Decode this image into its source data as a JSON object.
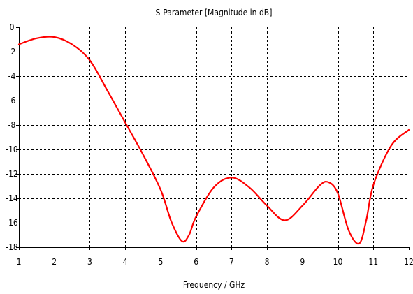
{
  "chart_data": {
    "type": "line",
    "title": "S-Parameter [Magnitude in dB]",
    "xlabel": "Frequency / GHz",
    "ylabel": "",
    "xlim": [
      1,
      12
    ],
    "ylim": [
      -18,
      0
    ],
    "xticks": [
      1,
      2,
      3,
      4,
      5,
      6,
      7,
      8,
      9,
      10,
      11,
      12
    ],
    "yticks": [
      0,
      -2,
      -4,
      -6,
      -8,
      -10,
      -12,
      -14,
      -16,
      -18
    ],
    "grid": true,
    "legend": "none",
    "series": [
      {
        "color": "#ff0000",
        "x": [
          1,
          1.5,
          2,
          2.5,
          3,
          3.5,
          4,
          4.5,
          5,
          5.3,
          5.6,
          5.8,
          6,
          6.5,
          7,
          7.5,
          8,
          8.5,
          9,
          9.5,
          9.75,
          10,
          10.3,
          10.6,
          10.8,
          11,
          11.5,
          12
        ],
        "y": [
          -1.4,
          -0.9,
          -0.8,
          -1.4,
          -2.7,
          -5.2,
          -7.8,
          -10.4,
          -13.3,
          -15.9,
          -17.5,
          -17.0,
          -15.5,
          -13.1,
          -12.3,
          -13.1,
          -14.6,
          -15.8,
          -14.6,
          -12.9,
          -12.7,
          -13.6,
          -16.6,
          -17.7,
          -15.8,
          -12.9,
          -9.7,
          -8.4
        ]
      }
    ]
  }
}
